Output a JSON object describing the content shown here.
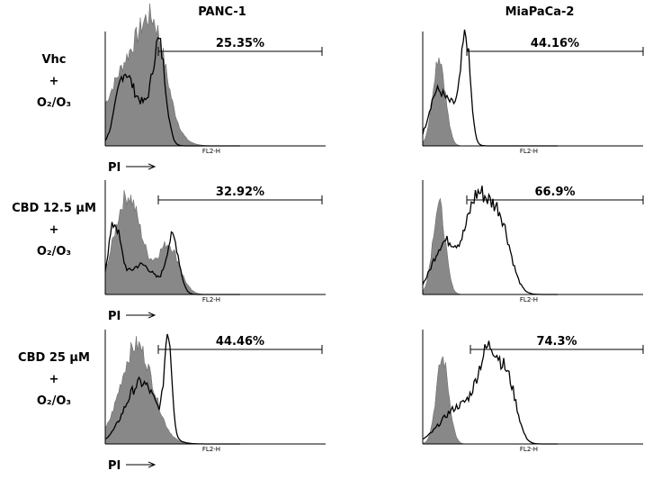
{
  "columns": [
    "PANC-1",
    "MiaPaCa-2"
  ],
  "rows": [
    {
      "label": [
        "Vhc",
        "+",
        "O₂/O₃"
      ],
      "panels": [
        "25.35%",
        "44.16%"
      ]
    },
    {
      "label": [
        "CBD 12.5 µM",
        "+",
        "O₂/O₃"
      ],
      "panels": [
        "32.92%",
        "66.9%"
      ]
    },
    {
      "label": [
        "CBD 25 µM",
        "+",
        "O₂/O₃"
      ],
      "panels": [
        "44.46%",
        "74.3%"
      ]
    }
  ],
  "axis_label": "PI",
  "channel": "FL2-H"
}
